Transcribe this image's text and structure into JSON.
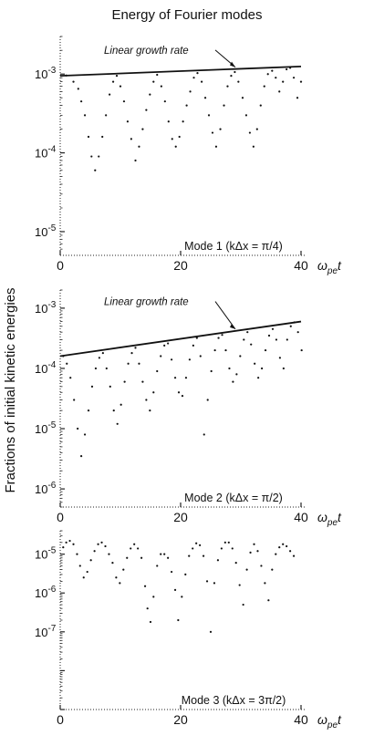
{
  "figure": {
    "title": "Energy of Fourier modes",
    "ylabel": "Fractions of initial kinetic energies"
  },
  "chart_data": [
    {
      "type": "scatter",
      "scale": "log",
      "xlabel": "ω_pe t",
      "xlim": [
        0,
        40
      ],
      "ylim": [
        5e-06,
        0.003
      ],
      "x_ticks": [
        0,
        20,
        40
      ],
      "y_ticks": [
        {
          "value": 0.001,
          "base": "10",
          "exp": "-3"
        },
        {
          "value": 0.0001,
          "base": "10",
          "exp": "-4"
        },
        {
          "value": 1e-05,
          "base": "10",
          "exp": "-5"
        }
      ],
      "mode_label": "Mode 1  (kΔx = π/4)",
      "line": {
        "label": "Linear growth rate",
        "x": [
          0,
          40
        ],
        "y": [
          0.00095,
          0.00125
        ]
      },
      "points": [
        [
          1.0,
          0.00096
        ],
        [
          2.2,
          0.0008
        ],
        [
          3.0,
          0.00065
        ],
        [
          3.5,
          0.00045
        ],
        [
          4.1,
          0.0003
        ],
        [
          4.7,
          0.00016
        ],
        [
          5.2,
          9e-05
        ],
        [
          5.8,
          6e-05
        ],
        [
          6.4,
          9e-05
        ],
        [
          7.0,
          0.00016
        ],
        [
          7.6,
          0.0003
        ],
        [
          8.2,
          0.00055
        ],
        [
          8.8,
          0.0008
        ],
        [
          9.4,
          0.00095
        ],
        [
          10.0,
          0.0007
        ],
        [
          10.6,
          0.00045
        ],
        [
          11.2,
          0.00025
        ],
        [
          11.8,
          0.00015
        ],
        [
          12.5,
          8e-05
        ],
        [
          13.1,
          0.00012
        ],
        [
          13.7,
          0.0002
        ],
        [
          14.3,
          0.00035
        ],
        [
          14.9,
          0.00055
        ],
        [
          15.5,
          0.0008
        ],
        [
          16.1,
          0.00098
        ],
        [
          16.8,
          0.0007
        ],
        [
          17.4,
          0.00045
        ],
        [
          18.0,
          0.00025
        ],
        [
          18.6,
          0.00015
        ],
        [
          19.2,
          0.00012
        ],
        [
          19.8,
          0.00016
        ],
        [
          20.4,
          0.00025
        ],
        [
          21.0,
          0.0004
        ],
        [
          21.6,
          0.0006
        ],
        [
          22.2,
          0.0009
        ],
        [
          22.8,
          0.00103
        ],
        [
          23.5,
          0.0008
        ],
        [
          24.1,
          0.0005
        ],
        [
          24.7,
          0.0003
        ],
        [
          25.3,
          0.00018
        ],
        [
          25.9,
          0.00012
        ],
        [
          26.6,
          0.0002
        ],
        [
          27.2,
          0.0004
        ],
        [
          27.8,
          0.0007
        ],
        [
          28.4,
          0.00095
        ],
        [
          29.0,
          0.00106
        ],
        [
          29.6,
          0.0008
        ],
        [
          30.3,
          0.0005
        ],
        [
          30.9,
          0.0003
        ],
        [
          31.5,
          0.00018
        ],
        [
          32.1,
          0.00012
        ],
        [
          32.7,
          0.0002
        ],
        [
          33.3,
          0.0004
        ],
        [
          33.9,
          0.0007
        ],
        [
          34.5,
          0.001
        ],
        [
          35.2,
          0.0011
        ],
        [
          35.8,
          0.0009
        ],
        [
          36.4,
          0.0006
        ],
        [
          37.0,
          0.0008
        ],
        [
          37.6,
          0.00115
        ],
        [
          38.2,
          0.0012
        ],
        [
          38.8,
          0.0009
        ],
        [
          39.4,
          0.0005
        ],
        [
          40.0,
          0.0008
        ]
      ]
    },
    {
      "type": "scatter",
      "scale": "log",
      "xlabel": "ω_pe t",
      "xlim": [
        0,
        40
      ],
      "ylim": [
        5e-07,
        0.002
      ],
      "x_ticks": [
        0,
        20,
        40
      ],
      "y_ticks": [
        {
          "value": 0.001,
          "base": "10",
          "exp": "-3"
        },
        {
          "value": 0.0001,
          "base": "10",
          "exp": "-4"
        },
        {
          "value": 1e-05,
          "base": "10",
          "exp": "-5"
        },
        {
          "value": 1e-06,
          "base": "10",
          "exp": "-6"
        }
      ],
      "mode_label": "Mode 2  (kΔx = π/2)",
      "line": {
        "label": "Linear growth rate",
        "x": [
          0,
          40
        ],
        "y": [
          0.00016,
          0.0006
        ]
      },
      "points": [
        [
          0.5,
          0.00016
        ],
        [
          1.1,
          0.00012
        ],
        [
          1.7,
          7e-05
        ],
        [
          2.3,
          3e-05
        ],
        [
          2.9,
          1e-05
        ],
        [
          3.5,
          3.5e-06
        ],
        [
          4.1,
          8e-06
        ],
        [
          4.7,
          2e-05
        ],
        [
          5.3,
          5e-05
        ],
        [
          5.9,
          0.0001
        ],
        [
          6.5,
          0.00015
        ],
        [
          7.1,
          0.00018
        ],
        [
          7.7,
          0.0001
        ],
        [
          8.3,
          5e-05
        ],
        [
          8.9,
          2e-05
        ],
        [
          9.5,
          1.2e-05
        ],
        [
          10.1,
          2.5e-05
        ],
        [
          10.7,
          6e-05
        ],
        [
          11.3,
          0.00012
        ],
        [
          11.9,
          0.00018
        ],
        [
          12.5,
          0.00022
        ],
        [
          13.1,
          0.00012
        ],
        [
          13.7,
          6e-05
        ],
        [
          14.3,
          3e-05
        ],
        [
          14.9,
          2e-05
        ],
        [
          15.5,
          4e-05
        ],
        [
          16.1,
          9e-05
        ],
        [
          16.7,
          0.00016
        ],
        [
          17.3,
          0.00024
        ],
        [
          17.9,
          0.00026
        ],
        [
          18.5,
          0.00014
        ],
        [
          19.1,
          7e-05
        ],
        [
          19.7,
          4e-05
        ],
        [
          20.3,
          3.5e-05
        ],
        [
          20.9,
          7e-05
        ],
        [
          21.5,
          0.00014
        ],
        [
          22.1,
          0.00024
        ],
        [
          22.7,
          0.00032
        ],
        [
          23.3,
          0.00016
        ],
        [
          23.9,
          8e-06
        ],
        [
          24.5,
          3e-05
        ],
        [
          25.1,
          9e-05
        ],
        [
          25.7,
          0.0002
        ],
        [
          26.3,
          0.00032
        ],
        [
          26.9,
          0.00036
        ],
        [
          27.5,
          0.0002
        ],
        [
          28.1,
          0.0001
        ],
        [
          28.7,
          6e-05
        ],
        [
          29.3,
          8e-05
        ],
        [
          29.9,
          0.00016
        ],
        [
          30.5,
          0.0003
        ],
        [
          31.1,
          0.0004
        ],
        [
          31.7,
          0.00025
        ],
        [
          32.3,
          0.00012
        ],
        [
          32.9,
          7e-05
        ],
        [
          33.5,
          0.0001
        ],
        [
          34.1,
          0.0002
        ],
        [
          34.7,
          0.00035
        ],
        [
          35.3,
          0.00045
        ],
        [
          35.9,
          0.0003
        ],
        [
          36.5,
          0.00015
        ],
        [
          37.1,
          0.0001
        ],
        [
          37.7,
          0.0003
        ],
        [
          38.3,
          0.0005
        ],
        [
          38.9,
          0.00058
        ],
        [
          39.5,
          0.0004
        ],
        [
          40.1,
          0.0002
        ]
      ]
    },
    {
      "type": "scatter",
      "scale": "log",
      "xlabel": "ω_pe t",
      "xlim": [
        0,
        40
      ],
      "ylim": [
        1e-09,
        4e-05
      ],
      "x_ticks": [
        0,
        20,
        40
      ],
      "y_ticks": [
        {
          "value": 1e-05,
          "base": "10",
          "exp": "-5"
        },
        {
          "value": 1e-06,
          "base": "10",
          "exp": "-6"
        },
        {
          "value": 1e-07,
          "base": "10",
          "exp": "-7"
        }
      ],
      "mode_label": "Mode 3  (kΔx = 3π/2)",
      "points": [
        [
          0.5,
          1.5e-05
        ],
        [
          1.0,
          2e-05
        ],
        [
          1.6,
          2.2e-05
        ],
        [
          2.2,
          1.8e-05
        ],
        [
          2.8,
          1e-05
        ],
        [
          3.3,
          5e-06
        ],
        [
          3.9,
          2.5e-06
        ],
        [
          4.5,
          3.5e-06
        ],
        [
          5.1,
          7e-06
        ],
        [
          5.7,
          1.2e-05
        ],
        [
          6.3,
          1.8e-05
        ],
        [
          6.9,
          2e-05
        ],
        [
          7.5,
          1.6e-05
        ],
        [
          8.1,
          1e-05
        ],
        [
          8.7,
          6e-06
        ],
        [
          9.3,
          2.5e-06
        ],
        [
          9.9,
          1.8e-06
        ],
        [
          10.5,
          4e-06
        ],
        [
          11.1,
          8e-06
        ],
        [
          11.7,
          1.4e-05
        ],
        [
          12.3,
          1.8e-05
        ],
        [
          12.9,
          1.4e-05
        ],
        [
          13.5,
          8e-06
        ],
        [
          14.1,
          1.5e-06
        ],
        [
          14.5,
          4e-07
        ],
        [
          15.0,
          1.8e-07
        ],
        [
          15.5,
          8e-07
        ],
        [
          16.1,
          5e-06
        ],
        [
          16.7,
          1e-05
        ],
        [
          17.3,
          1e-05
        ],
        [
          17.9,
          8e-06
        ],
        [
          18.5,
          3.5e-06
        ],
        [
          19.1,
          1.2e-06
        ],
        [
          19.6,
          2e-07
        ],
        [
          20.2,
          8e-07
        ],
        [
          20.8,
          3e-06
        ],
        [
          21.4,
          9e-06
        ],
        [
          22.0,
          1.4e-05
        ],
        [
          22.6,
          1.9e-05
        ],
        [
          23.2,
          1.7e-05
        ],
        [
          23.8,
          9e-06
        ],
        [
          24.4,
          2e-06
        ],
        [
          25.0,
          1e-07
        ],
        [
          25.6,
          1.8e-06
        ],
        [
          26.2,
          7e-06
        ],
        [
          26.8,
          1.4e-05
        ],
        [
          27.4,
          2e-05
        ],
        [
          28.0,
          2e-05
        ],
        [
          28.6,
          1.4e-05
        ],
        [
          29.2,
          6e-06
        ],
        [
          29.8,
          1.6e-06
        ],
        [
          30.4,
          5e-07
        ],
        [
          31.0,
          4e-06
        ],
        [
          31.6,
          1.1e-05
        ],
        [
          32.2,
          1.8e-05
        ],
        [
          32.8,
          1.2e-05
        ],
        [
          33.4,
          5e-06
        ],
        [
          34.0,
          1.8e-06
        ],
        [
          34.6,
          6.5e-07
        ],
        [
          35.2,
          4e-06
        ],
        [
          35.8,
          1e-05
        ],
        [
          36.4,
          1.5e-05
        ],
        [
          37.0,
          1.8e-05
        ],
        [
          37.6,
          1.6e-05
        ],
        [
          38.2,
          1.2e-05
        ],
        [
          38.8,
          9e-06
        ]
      ]
    }
  ]
}
